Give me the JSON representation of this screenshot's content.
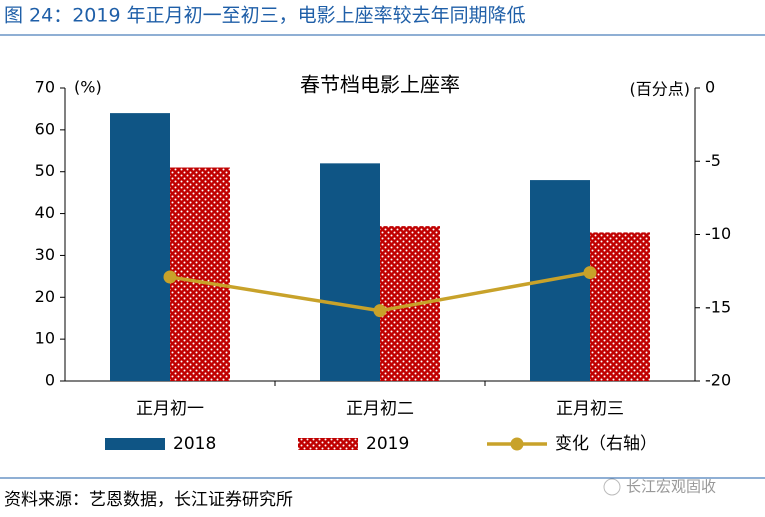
{
  "header": {
    "title": "图 24：2019 年正月初一至初三，电影上座率较去年同期降低"
  },
  "chart_data": {
    "type": "bar",
    "title": "春节档电影上座率",
    "y_label": "(%)",
    "y2_label": "(百分点)",
    "categories": [
      "正月初一",
      "正月初二",
      "正月初三"
    ],
    "series": [
      {
        "name": "2018",
        "color": "#0f5585",
        "values": [
          64,
          52,
          48
        ]
      },
      {
        "name": "2019",
        "color": "#c00000",
        "values": [
          51,
          37,
          35.5
        ]
      },
      {
        "name": "变化（右轴）",
        "color": "#c8a22a",
        "type": "line",
        "axis": "y2",
        "values": [
          -12.9,
          -15.2,
          -12.6
        ]
      }
    ],
    "ylim": [
      0,
      70
    ],
    "yticks": [
      0,
      10,
      20,
      30,
      40,
      50,
      60,
      70
    ],
    "y2lim": [
      -20,
      0
    ],
    "y2ticks": [
      0,
      -5,
      -10,
      -15,
      -20
    ]
  },
  "footer": {
    "source": "资料来源：艺恩数据，长江证券研究所",
    "watermark": "长江宏观固收"
  }
}
